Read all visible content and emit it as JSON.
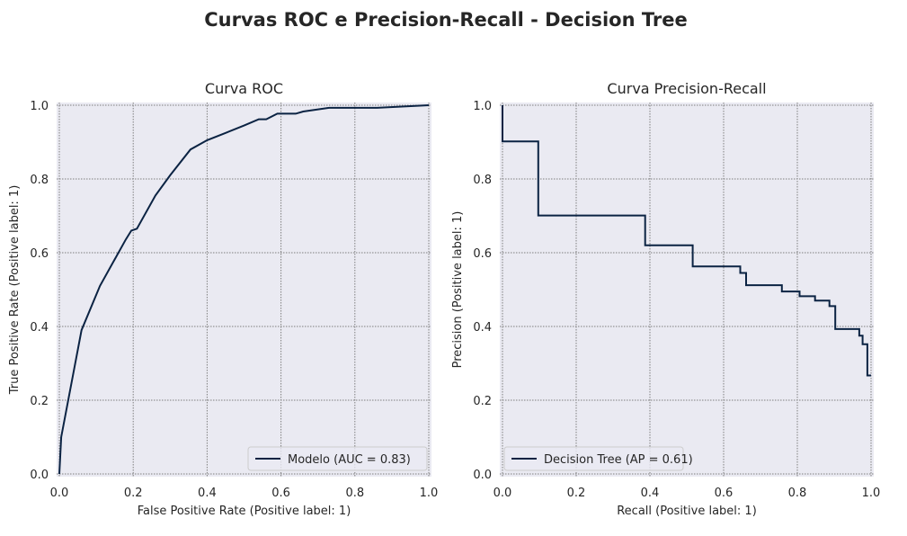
{
  "figure": {
    "title": "Curvas ROC e Precision-Recall - Decision Tree"
  },
  "colors": {
    "line": "#0b2343",
    "plot_bg": "#eaeaf2",
    "grid": "#7f7f7f"
  },
  "chart_data": [
    {
      "type": "line",
      "title": "Curva ROC",
      "xlabel": "False Positive Rate (Positive label: 1)",
      "ylabel": "True Positive Rate (Positive label: 1)",
      "xlim": [
        0,
        1
      ],
      "ylim": [
        0,
        1
      ],
      "xticks": [
        "0.0",
        "0.2",
        "0.4",
        "0.6",
        "0.8",
        "1.0"
      ],
      "yticks": [
        "0.0",
        "0.2",
        "0.4",
        "0.6",
        "0.8",
        "1.0"
      ],
      "grid": true,
      "legend": "lower-right",
      "series": [
        {
          "name": "Modelo (AUC = 0.83)",
          "x": [
            0.0,
            0.005,
            0.06,
            0.11,
            0.18,
            0.195,
            0.21,
            0.26,
            0.3,
            0.355,
            0.4,
            0.45,
            0.5,
            0.54,
            0.56,
            0.59,
            0.64,
            0.66,
            0.73,
            0.86,
            1.0
          ],
          "y": [
            0.0,
            0.1,
            0.39,
            0.51,
            0.636,
            0.66,
            0.665,
            0.755,
            0.81,
            0.88,
            0.905,
            0.925,
            0.945,
            0.962,
            0.962,
            0.977,
            0.977,
            0.983,
            0.993,
            0.993,
            1.0
          ]
        }
      ]
    },
    {
      "type": "line",
      "title": "Curva Precision-Recall",
      "xlabel": "Recall (Positive label: 1)",
      "ylabel": "Precision (Positive label: 1)",
      "xlim": [
        0,
        1
      ],
      "ylim": [
        0,
        1
      ],
      "xticks": [
        "0.0",
        "0.2",
        "0.4",
        "0.6",
        "0.8",
        "1.0"
      ],
      "yticks": [
        "0.0",
        "0.2",
        "0.4",
        "0.6",
        "0.8",
        "1.0"
      ],
      "grid": true,
      "legend": "lower-left",
      "series": [
        {
          "name": "Decision Tree (AP = 0.61)",
          "recall": [
            0.0,
            0.0,
            0.097,
            0.097,
            0.387,
            0.387,
            0.516,
            0.516,
            0.645,
            0.645,
            0.661,
            0.661,
            0.758,
            0.758,
            0.806,
            0.806,
            0.848,
            0.848,
            0.887,
            0.887,
            0.903,
            0.903,
            0.968,
            0.968,
            0.977,
            0.977,
            0.99,
            0.99,
            1.0
          ],
          "precision": [
            1.0,
            0.902,
            0.902,
            0.701,
            0.701,
            0.62,
            0.62,
            0.563,
            0.563,
            0.545,
            0.545,
            0.512,
            0.512,
            0.495,
            0.495,
            0.482,
            0.482,
            0.47,
            0.47,
            0.455,
            0.455,
            0.393,
            0.393,
            0.375,
            0.375,
            0.352,
            0.352,
            0.267,
            0.267
          ]
        }
      ]
    }
  ]
}
